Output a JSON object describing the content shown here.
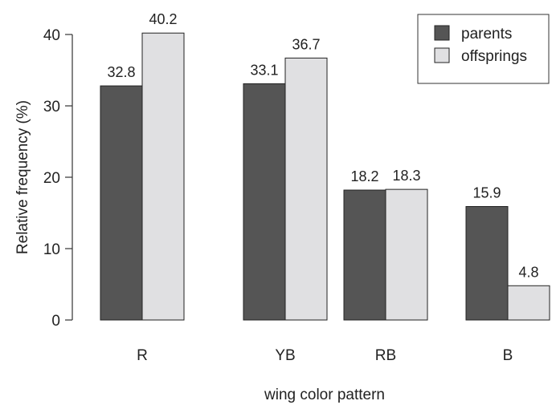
{
  "chart_data": {
    "type": "bar",
    "categories": [
      "R",
      "YB",
      "RB",
      "B"
    ],
    "series": [
      {
        "name": "parents",
        "values": [
          32.8,
          33.1,
          18.2,
          15.9
        ],
        "color": "#555555"
      },
      {
        "name": "offsprings",
        "values": [
          40.2,
          36.7,
          18.3,
          4.8
        ],
        "color": "#e0e0e2"
      }
    ],
    "data_labels": [
      [
        "32.8",
        "33.1",
        "18.2",
        "15.9"
      ],
      [
        "40.2",
        "36.7",
        "18.3",
        "4.8"
      ]
    ],
    "xlabel": "wing color pattern",
    "ylabel": "Relative frequency (%)",
    "ylim": [
      0,
      40
    ],
    "yticks": [
      0,
      10,
      20,
      30,
      40
    ],
    "grid": false,
    "legend_position": "top-right"
  }
}
